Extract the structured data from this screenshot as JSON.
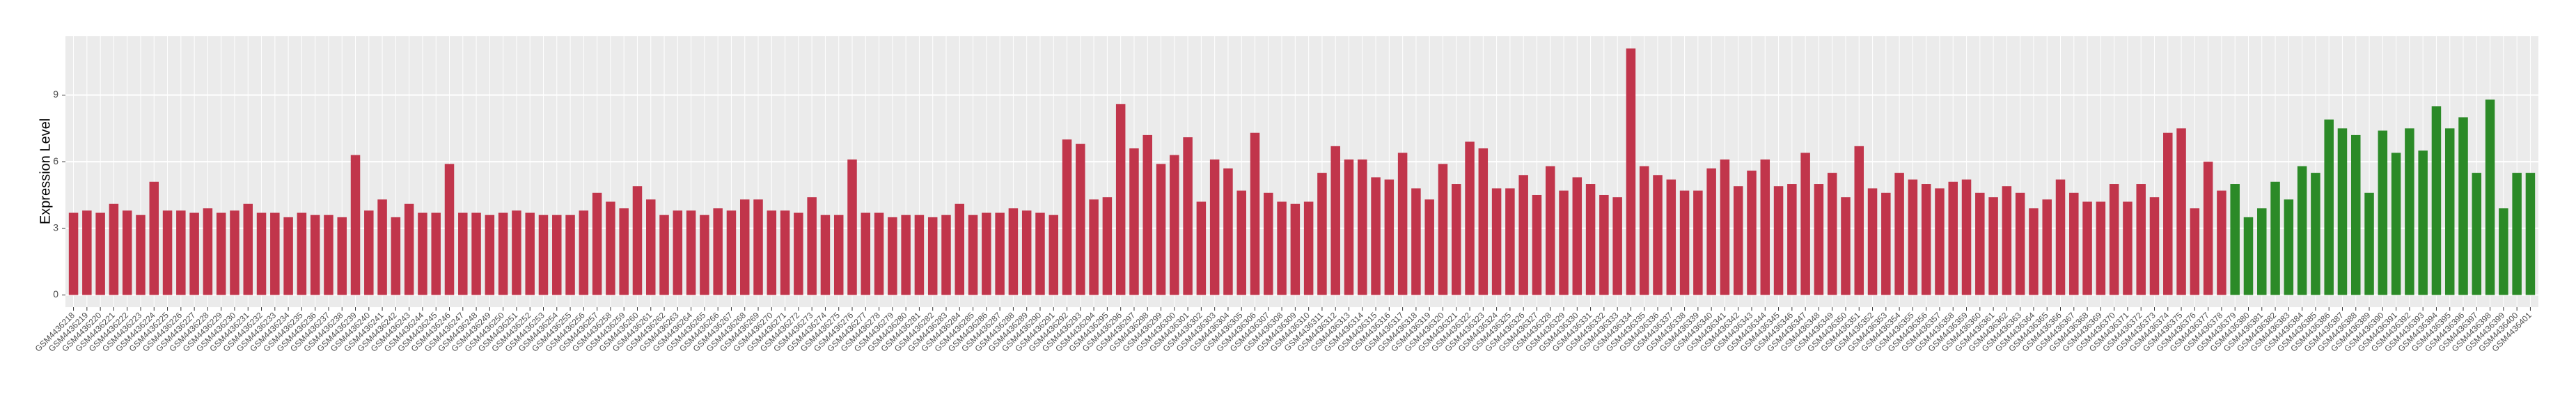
{
  "chart_data": {
    "type": "bar",
    "y_label": "Expression Level",
    "categories": [
      "GSM4436218",
      "GSM4436219",
      "GSM4436220",
      "GSM4436221",
      "GSM4436222",
      "GSM4436223",
      "GSM4436224",
      "GSM4436225",
      "GSM4436226",
      "GSM4436227",
      "GSM4436228",
      "GSM4436229",
      "GSM4436230",
      "GSM4436231",
      "GSM4436232",
      "GSM4436233",
      "GSM4436234",
      "GSM4436235",
      "GSM4436236",
      "GSM4436237",
      "GSM4436238",
      "GSM4436239",
      "GSM4436240",
      "GSM4436241",
      "GSM4436242",
      "GSM4436243",
      "GSM4436244",
      "GSM4436245",
      "GSM4436246",
      "GSM4436247",
      "GSM4436248",
      "GSM4436249",
      "GSM4436250",
      "GSM4436251",
      "GSM4436252",
      "GSM4436253",
      "GSM4436254",
      "GSM4436255",
      "GSM4436256",
      "GSM4436257",
      "GSM4436258",
      "GSM4436259",
      "GSM4436260",
      "GSM4436261",
      "GSM4436262",
      "GSM4436263",
      "GSM4436264",
      "GSM4436265",
      "GSM4436266",
      "GSM4436267",
      "GSM4436268",
      "GSM4436269",
      "GSM4436270",
      "GSM4436271",
      "GSM4436272",
      "GSM4436273",
      "GSM4436274",
      "GSM4436275",
      "GSM4436276",
      "GSM4436277",
      "GSM4436278",
      "GSM4436279",
      "GSM4436280",
      "GSM4436281",
      "GSM4436282",
      "GSM4436283",
      "GSM4436284",
      "GSM4436285",
      "GSM4436286",
      "GSM4436287",
      "GSM4436288",
      "GSM4436289",
      "GSM4436290",
      "GSM4436291",
      "GSM4436292",
      "GSM4436293",
      "GSM4436294",
      "GSM4436295",
      "GSM4436296",
      "GSM4436297",
      "GSM4436298",
      "GSM4436299",
      "GSM4436300",
      "GSM4436301",
      "GSM4436302",
      "GSM4436303",
      "GSM4436304",
      "GSM4436305",
      "GSM4436306",
      "GSM4436307",
      "GSM4436308",
      "GSM4436309",
      "GSM4436310",
      "GSM4436311",
      "GSM4436312",
      "GSM4436313",
      "GSM4436314",
      "GSM4436315",
      "GSM4436316",
      "GSM4436317",
      "GSM4436318",
      "GSM4436319",
      "GSM4436320",
      "GSM4436321",
      "GSM4436322",
      "GSM4436323",
      "GSM4436324",
      "GSM4436325",
      "GSM4436326",
      "GSM4436327",
      "GSM4436328",
      "GSM4436329",
      "GSM4436330",
      "GSM4436331",
      "GSM4436332",
      "GSM4436333",
      "GSM4436334",
      "GSM4436335",
      "GSM4436336",
      "GSM4436337",
      "GSM4436338",
      "GSM4436339",
      "GSM4436340",
      "GSM4436341",
      "GSM4436342",
      "GSM4436343",
      "GSM4436344",
      "GSM4436345",
      "GSM4436346",
      "GSM4436347",
      "GSM4436348",
      "GSM4436349",
      "GSM4436350",
      "GSM4436351",
      "GSM4436352",
      "GSM4436353",
      "GSM4436354",
      "GSM4436355",
      "GSM4436356",
      "GSM4436357",
      "GSM4436358",
      "GSM4436359",
      "GSM4436360",
      "GSM4436361",
      "GSM4436362",
      "GSM4436363",
      "GSM4436364",
      "GSM4436365",
      "GSM4436366",
      "GSM4436367",
      "GSM4436368",
      "GSM4436369",
      "GSM4436370",
      "GSM4436371",
      "GSM4436372",
      "GSM4436373",
      "GSM4436374",
      "GSM4436375",
      "GSM4436376",
      "GSM4436377",
      "GSM4436378",
      "GSM4436379",
      "GSM4436380",
      "GSM4436381",
      "GSM4436382",
      "GSM4436383",
      "GSM4436384",
      "GSM4436385",
      "GSM4436386",
      "GSM4436387",
      "GSM4436388",
      "GSM4436389",
      "GSM4436390",
      "GSM4436391",
      "GSM4436392",
      "GSM4436393",
      "GSM4436394",
      "GSM4436395",
      "GSM4436396",
      "GSM4436397",
      "GSM4436398",
      "GSM4436399",
      "GSM4436400",
      "GSM4436401"
    ],
    "values": [
      3.7,
      3.8,
      3.7,
      4.1,
      3.8,
      3.6,
      5.1,
      3.8,
      3.8,
      3.7,
      3.9,
      3.7,
      3.8,
      4.1,
      3.7,
      3.7,
      3.5,
      3.7,
      3.6,
      3.6,
      3.5,
      6.3,
      3.8,
      4.3,
      3.5,
      4.1,
      3.7,
      3.7,
      5.9,
      3.7,
      3.7,
      3.6,
      3.7,
      3.8,
      3.7,
      3.6,
      3.6,
      3.6,
      3.8,
      4.6,
      4.2,
      3.9,
      4.9,
      4.3,
      3.6,
      3.8,
      3.8,
      3.6,
      3.9,
      3.8,
      4.3,
      4.3,
      3.8,
      3.8,
      3.7,
      4.4,
      3.6,
      3.6,
      6.1,
      3.7,
      3.7,
      3.5,
      3.6,
      3.6,
      3.5,
      3.6,
      4.1,
      3.6,
      3.7,
      3.7,
      3.9,
      3.8,
      3.7,
      3.6,
      7.0,
      6.8,
      4.3,
      4.4,
      8.6,
      6.6,
      7.2,
      5.9,
      6.3,
      7.1,
      4.2,
      6.1,
      5.7,
      4.7,
      7.3,
      4.6,
      4.2,
      4.1,
      4.2,
      5.5,
      6.7,
      6.1,
      6.1,
      5.3,
      5.2,
      6.4,
      4.8,
      4.3,
      5.9,
      5.0,
      6.9,
      6.6,
      4.8,
      4.8,
      5.4,
      4.5,
      5.8,
      4.7,
      5.3,
      5.0,
      4.5,
      4.4,
      11.1,
      5.8,
      5.4,
      5.2,
      4.7,
      4.7,
      5.7,
      6.1,
      4.9,
      5.6,
      6.1,
      4.9,
      5.0,
      6.4,
      5.0,
      5.5,
      4.4,
      6.7,
      4.8,
      4.6,
      5.5,
      5.2,
      5.0,
      4.8,
      5.1,
      5.2,
      4.6,
      4.4,
      4.9,
      4.6,
      3.9,
      4.3,
      5.2,
      4.6,
      4.2,
      4.2,
      5.0,
      4.2,
      5.0,
      4.4,
      7.3,
      7.5,
      3.9,
      6.0,
      4.7,
      5.0,
      3.5,
      3.9,
      5.1,
      4.3,
      5.8,
      5.5,
      7.9,
      7.5,
      7.2,
      4.6,
      7.4,
      6.4,
      7.5,
      6.5,
      8.5,
      7.5,
      8.0,
      5.5,
      8.8,
      3.9,
      5.5,
      5.5
    ],
    "colors": [
      "#c1354b",
      "#c1354b",
      "#c1354b",
      "#c1354b",
      "#c1354b",
      "#c1354b",
      "#c1354b",
      "#c1354b",
      "#c1354b",
      "#c1354b",
      "#c1354b",
      "#c1354b",
      "#c1354b",
      "#c1354b",
      "#c1354b",
      "#c1354b",
      "#c1354b",
      "#c1354b",
      "#c1354b",
      "#c1354b",
      "#c1354b",
      "#c1354b",
      "#c1354b",
      "#c1354b",
      "#c1354b",
      "#c1354b",
      "#c1354b",
      "#c1354b",
      "#c1354b",
      "#c1354b",
      "#c1354b",
      "#c1354b",
      "#c1354b",
      "#c1354b",
      "#c1354b",
      "#c1354b",
      "#c1354b",
      "#c1354b",
      "#c1354b",
      "#c1354b",
      "#c1354b",
      "#c1354b",
      "#c1354b",
      "#c1354b",
      "#c1354b",
      "#c1354b",
      "#c1354b",
      "#c1354b",
      "#c1354b",
      "#c1354b",
      "#c1354b",
      "#c1354b",
      "#c1354b",
      "#c1354b",
      "#c1354b",
      "#c1354b",
      "#c1354b",
      "#c1354b",
      "#c1354b",
      "#c1354b",
      "#c1354b",
      "#c1354b",
      "#c1354b",
      "#c1354b",
      "#c1354b",
      "#c1354b",
      "#c1354b",
      "#c1354b",
      "#c1354b",
      "#c1354b",
      "#c1354b",
      "#c1354b",
      "#c1354b",
      "#c1354b",
      "#c1354b",
      "#c1354b",
      "#c1354b",
      "#c1354b",
      "#c1354b",
      "#c1354b",
      "#c1354b",
      "#c1354b",
      "#c1354b",
      "#c1354b",
      "#c1354b",
      "#c1354b",
      "#c1354b",
      "#c1354b",
      "#c1354b",
      "#c1354b",
      "#c1354b",
      "#c1354b",
      "#c1354b",
      "#c1354b",
      "#c1354b",
      "#c1354b",
      "#c1354b",
      "#c1354b",
      "#c1354b",
      "#c1354b",
      "#c1354b",
      "#c1354b",
      "#c1354b",
      "#c1354b",
      "#c1354b",
      "#c1354b",
      "#c1354b",
      "#c1354b",
      "#c1354b",
      "#c1354b",
      "#c1354b",
      "#c1354b",
      "#c1354b",
      "#c1354b",
      "#c1354b",
      "#c1354b",
      "#c1354b",
      "#c1354b",
      "#c1354b",
      "#c1354b",
      "#c1354b",
      "#c1354b",
      "#c1354b",
      "#c1354b",
      "#c1354b",
      "#c1354b",
      "#c1354b",
      "#c1354b",
      "#c1354b",
      "#c1354b",
      "#c1354b",
      "#c1354b",
      "#c1354b",
      "#c1354b",
      "#c1354b",
      "#c1354b",
      "#c1354b",
      "#c1354b",
      "#c1354b",
      "#c1354b",
      "#c1354b",
      "#c1354b",
      "#c1354b",
      "#c1354b",
      "#c1354b",
      "#c1354b",
      "#c1354b",
      "#c1354b",
      "#c1354b",
      "#c1354b",
      "#c1354b",
      "#c1354b",
      "#c1354b",
      "#c1354b",
      "#c1354b",
      "#c1354b",
      "#c1354b",
      "#c1354b",
      "#c1354b",
      "#c1354b",
      "#c1354b",
      "#2b8a27",
      "#2b8a27",
      "#2b8a27",
      "#2b8a27",
      "#2b8a27",
      "#2b8a27",
      "#2b8a27",
      "#2b8a27",
      "#2b8a27",
      "#2b8a27",
      "#2b8a27",
      "#2b8a27",
      "#2b8a27",
      "#2b8a27",
      "#2b8a27",
      "#2b8a27",
      "#2b8a27",
      "#2b8a27",
      "#2b8a27",
      "#2b8a27",
      "#2b8a27",
      "#2b8a27",
      "#2b8a27"
    ],
    "ylim": [
      -0.55,
      11.65
    ],
    "yticks": [
      0,
      3,
      6,
      9
    ],
    "grid": true
  }
}
